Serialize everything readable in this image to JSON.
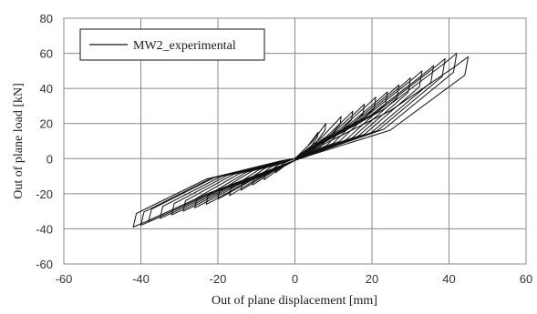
{
  "chart_data": {
    "type": "line",
    "title": "",
    "xlabel": "Out of plane  displacement  [mm]",
    "ylabel": "Out of plane  load  [kN]",
    "xlim": [
      -60,
      60
    ],
    "ylim": [
      -60,
      80
    ],
    "xticks": [
      -60,
      -40,
      -20,
      0,
      20,
      40,
      60
    ],
    "yticks": [
      -60,
      -40,
      -20,
      0,
      20,
      40,
      60,
      80
    ],
    "grid": true,
    "legend_position": "top-left",
    "series": [
      {
        "name": "MW2_experimental",
        "color": "#111111",
        "description_loops": "hysteresis cycles",
        "loops": [
          {
            "xmax": 6,
            "ymax": 15,
            "xmin": -5,
            "ymin": -8
          },
          {
            "xmax": 8,
            "ymax": 20,
            "xmin": -8,
            "ymin": -12
          },
          {
            "xmax": 12,
            "ymax": 24,
            "xmin": -11,
            "ymin": -15
          },
          {
            "xmax": 15,
            "ymax": 27,
            "xmin": -14,
            "ymin": -18
          },
          {
            "xmax": 18,
            "ymax": 31,
            "xmin": -17,
            "ymin": -21
          },
          {
            "xmax": 21,
            "ymax": 35,
            "xmin": -20,
            "ymin": -23
          },
          {
            "xmax": 24,
            "ymax": 38,
            "xmin": -23,
            "ymin": -26
          },
          {
            "xmax": 27,
            "ymax": 42,
            "xmin": -26,
            "ymin": -28
          },
          {
            "xmax": 30,
            "ymax": 46,
            "xmin": -29,
            "ymin": -30
          },
          {
            "xmax": 33,
            "ymax": 50,
            "xmin": -32,
            "ymin": -32
          },
          {
            "xmax": 36,
            "ymax": 53,
            "xmin": -35,
            "ymin": -34
          },
          {
            "xmax": 39,
            "ymax": 57,
            "xmin": -38,
            "ymin": -36
          },
          {
            "xmax": 42,
            "ymax": 60,
            "xmin": -40,
            "ymin": -38
          },
          {
            "xmax": 45,
            "ymax": 58,
            "xmin": -42,
            "ymin": -39
          }
        ]
      }
    ]
  }
}
